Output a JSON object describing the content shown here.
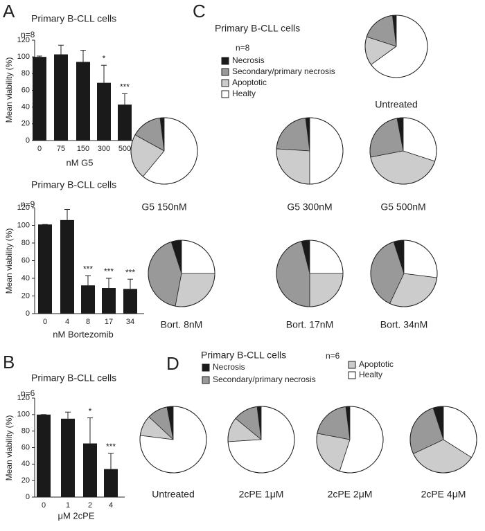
{
  "chart_data": [
    {
      "type": "bar",
      "panel": "A",
      "title": "Primary B-CLL cells",
      "annotation": "n=8",
      "x_label": "nM G5",
      "y_label": "Mean viability (%)",
      "categories": [
        "0",
        "75",
        "150",
        "300",
        "500"
      ],
      "values": [
        100,
        103,
        94,
        69,
        43
      ],
      "errors": [
        1,
        11,
        14,
        21,
        13
      ],
      "significance": [
        null,
        null,
        null,
        "*",
        "***"
      ],
      "color": "#1a1a1a",
      "ylim": [
        0,
        120
      ],
      "yticks": [
        0,
        20,
        40,
        60,
        80,
        100,
        120
      ]
    },
    {
      "type": "bar",
      "title": "Primary B-CLL cells",
      "annotation": "n=9",
      "x_label": "nM Bortezomib",
      "y_label": "Mean viability (%)",
      "categories": [
        "0",
        "4",
        "8",
        "17",
        "34"
      ],
      "values": [
        101,
        106,
        32,
        29,
        28
      ],
      "errors": [
        0,
        12,
        11,
        11,
        11
      ],
      "significance": [
        null,
        null,
        "***",
        "***",
        "***"
      ],
      "color": "#1a1a1a",
      "ylim": [
        0,
        120
      ],
      "yticks": [
        0,
        20,
        40,
        60,
        80,
        100,
        120
      ]
    },
    {
      "type": "bar",
      "panel": "B",
      "title": "Primary B-CLL cells",
      "annotation": "n=6",
      "x_label": "μM 2cPE",
      "y_label": "Mean viability (%)",
      "categories": [
        "0",
        "1",
        "2",
        "4"
      ],
      "values": [
        100,
        95,
        65,
        34
      ],
      "errors": [
        0,
        8,
        31,
        19
      ],
      "significance": [
        null,
        null,
        "*",
        "***"
      ],
      "color": "#1a1a1a",
      "ylim": [
        0,
        120
      ],
      "yticks": [
        0,
        20,
        40,
        60,
        80,
        100,
        120
      ]
    },
    {
      "type": "pie",
      "panel": "C",
      "title": "Primary B-CLL cells",
      "annotation": "n=8",
      "categories": [
        "Necrosis",
        "Secondary/primary necrosis",
        "Apoptotic",
        "Healty"
      ],
      "colors": [
        "#1a1a1a",
        "#999999",
        "#cccccc",
        "#ffffff"
      ],
      "pies": [
        {
          "name": "Untreated",
          "values": [
            2,
            18,
            15,
            65
          ]
        },
        {
          "name": "G5 150nM",
          "values": [
            2,
            15,
            22,
            61
          ]
        },
        {
          "name": "G5 300nM",
          "values": [
            2,
            22,
            26,
            50
          ]
        },
        {
          "name": "G5 500nM",
          "values": [
            3,
            25,
            42,
            30
          ]
        },
        {
          "name": "Bort. 8nM",
          "values": [
            5,
            42,
            28,
            25
          ]
        },
        {
          "name": "Bort. 17nM",
          "values": [
            4,
            46,
            25,
            25
          ]
        },
        {
          "name": "Bort. 34nM",
          "values": [
            5,
            38,
            30,
            27
          ]
        }
      ]
    },
    {
      "type": "pie",
      "panel": "D",
      "title": "Primary B-CLL cells",
      "annotation": "n=6",
      "categories": [
        "Necrosis",
        "Secondary/primary necrosis",
        "Apoptotic",
        "Healty"
      ],
      "colors": [
        "#1a1a1a",
        "#999999",
        "#cccccc",
        "#ffffff"
      ],
      "pies": [
        {
          "name": "Untreated",
          "values": [
            3,
            10,
            10,
            77
          ]
        },
        {
          "name": "2cPE 1μM",
          "values": [
            2,
            12,
            12,
            74
          ]
        },
        {
          "name": "2cPE 2μM",
          "values": [
            2,
            20,
            23,
            55
          ]
        },
        {
          "name": "2cPE 4μM",
          "values": [
            5,
            27,
            34,
            34
          ]
        }
      ]
    }
  ]
}
